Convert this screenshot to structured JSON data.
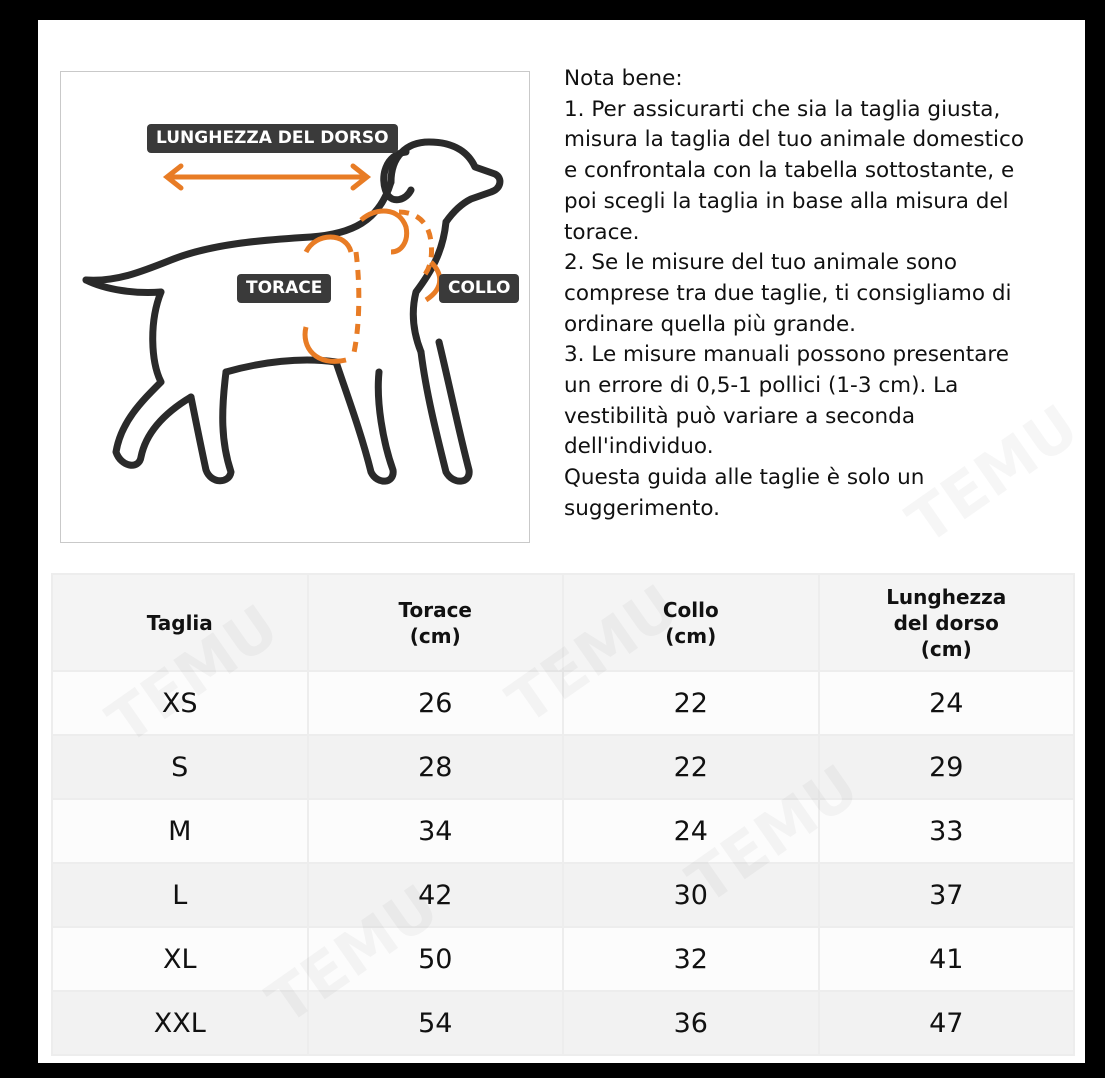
{
  "diagram": {
    "labels": {
      "back_length": "LUNGHEZZA DEL DORSO",
      "chest": "TORACE",
      "neck": "COLLO"
    },
    "accent_color": "#e87c25",
    "label_bg_color": "#3a3a3a"
  },
  "notes": {
    "title": "Nota bene:",
    "lines": [
      "1. Per assicurarti che sia la taglia giusta,",
      "misura la taglia del tuo animale domestico",
      "e confrontala con la tabella sottostante, e",
      "poi scegli la taglia in base alla misura del",
      "torace.",
      "2. Se le misure del tuo animale sono",
      "comprese tra due taglie, ti consigliamo di",
      "ordinare quella più grande.",
      "3. Le misure manuali possono presentare",
      "un errore di 0,5-1 pollici (1-3 cm). La",
      "vestibilità può variare a seconda",
      "dell'individuo.",
      "Questa guida alle taglie è solo un",
      "suggerimento."
    ]
  },
  "table": {
    "headers": [
      [
        "Taglia"
      ],
      [
        "Torace",
        "(cm)"
      ],
      [
        "Collo",
        "(cm)"
      ],
      [
        "Lunghezza",
        "del dorso",
        "(cm)"
      ]
    ],
    "rows": [
      [
        "XS",
        "26",
        "22",
        "24"
      ],
      [
        "S",
        "28",
        "22",
        "29"
      ],
      [
        "M",
        "34",
        "24",
        "33"
      ],
      [
        "L",
        "42",
        "30",
        "37"
      ],
      [
        "XL",
        "50",
        "32",
        "41"
      ],
      [
        "XXL",
        "54",
        "36",
        "47"
      ]
    ]
  },
  "watermark": "TEMU"
}
